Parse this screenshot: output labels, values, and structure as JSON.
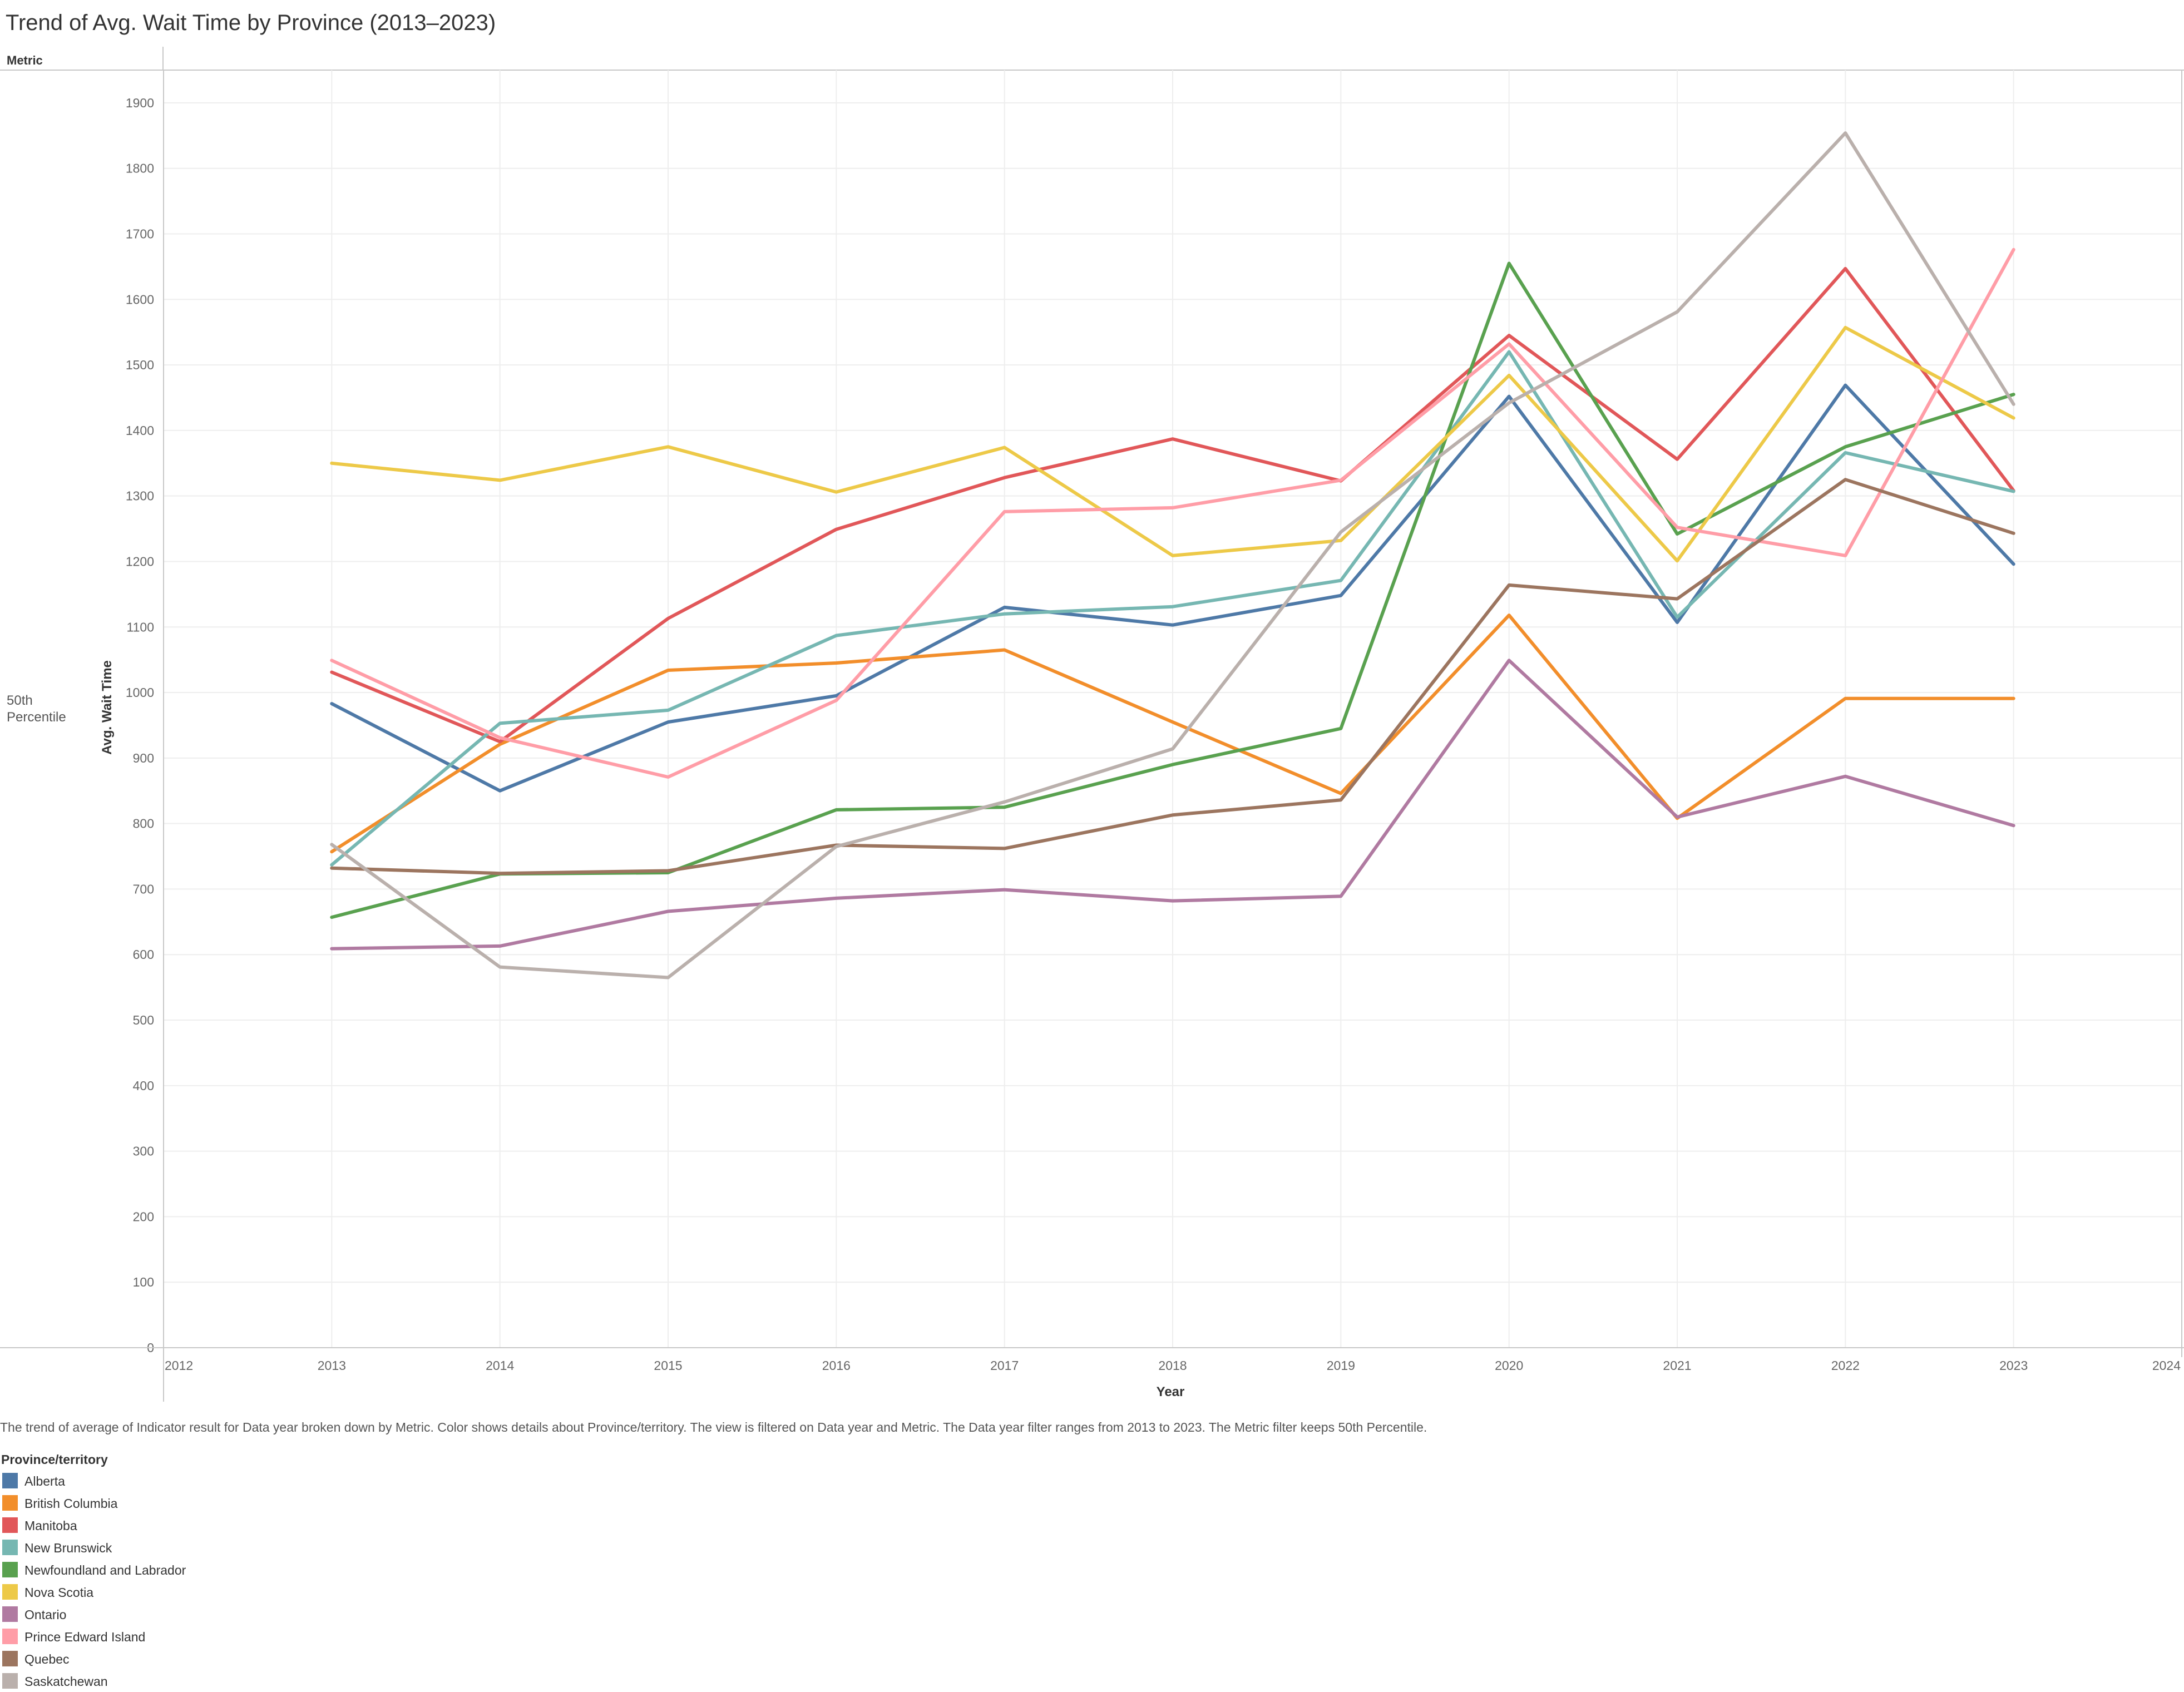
{
  "header": {
    "title": "Trend of Avg. Wait Time by Province (2013–2023)",
    "metric_header": "Metric",
    "row_label_line1": "50th",
    "row_label_line2": "Percentile"
  },
  "caption": "The trend of average of Indicator result for Data year broken down by Metric.  Color shows details about Province/territory. The view is filtered on Data year and Metric. The Data year filter ranges from 2013 to 2023. The Metric filter keeps 50th Percentile.",
  "chart_data": {
    "type": "line",
    "title": "Trend of Avg. Wait Time by Province (2013–2023)",
    "xlabel": "Year",
    "ylabel": "Avg. Wait Time",
    "xlim": [
      2012,
      2024
    ],
    "ylim": [
      0,
      1950
    ],
    "x_ticks": [
      2012,
      2013,
      2014,
      2015,
      2016,
      2017,
      2018,
      2019,
      2020,
      2021,
      2022,
      2023,
      2024
    ],
    "y_ticks": [
      0,
      100,
      200,
      300,
      400,
      500,
      600,
      700,
      800,
      900,
      1000,
      1100,
      1200,
      1300,
      1400,
      1500,
      1600,
      1700,
      1800,
      1900
    ],
    "grid": true,
    "legend_title": "Province/territory",
    "legend_position": "bottom-left",
    "x": [
      2013,
      2014,
      2015,
      2016,
      2017,
      2018,
      2019,
      2020,
      2021,
      2022,
      2023
    ],
    "series": [
      {
        "name": "Alberta",
        "color": "#4e79a7",
        "values": [
          983,
          850,
          955,
          995,
          1130,
          1103,
          1148,
          1452,
          1107,
          1469,
          1196
        ]
      },
      {
        "name": "British Columbia",
        "color": "#f28e2b",
        "values": [
          757,
          921,
          1034,
          1045,
          1065,
          955,
          846,
          1118,
          808,
          991,
          991
        ]
      },
      {
        "name": "Manitoba",
        "color": "#e15759",
        "values": [
          1031,
          925,
          1113,
          1249,
          1328,
          1387,
          1323,
          1545,
          1356,
          1647,
          1308
        ]
      },
      {
        "name": "New Brunswick",
        "color": "#76b7b2",
        "values": [
          737,
          953,
          973,
          1087,
          1120,
          1131,
          1171,
          1520,
          1115,
          1366,
          1307
        ]
      },
      {
        "name": "Newfoundland and Labrador",
        "color": "#59a14f",
        "values": [
          657,
          723,
          725,
          821,
          825,
          890,
          945,
          1655,
          1242,
          1375,
          1455
        ]
      },
      {
        "name": "Nova Scotia",
        "color": "#edc948",
        "values": [
          1350,
          1324,
          1375,
          1306,
          1374,
          1209,
          1232,
          1484,
          1201,
          1557,
          1419
        ]
      },
      {
        "name": "Ontario",
        "color": "#b07aa1",
        "values": [
          609,
          613,
          666,
          686,
          699,
          682,
          689,
          1049,
          810,
          872,
          797
        ]
      },
      {
        "name": "Prince Edward Island",
        "color": "#ff9da7",
        "values": [
          1049,
          931,
          871,
          988,
          1276,
          1282,
          1324,
          1532,
          1252,
          1209,
          1676
        ]
      },
      {
        "name": "Quebec",
        "color": "#9c755f",
        "values": [
          732,
          724,
          728,
          767,
          762,
          813,
          836,
          1164,
          1143,
          1325,
          1243
        ]
      },
      {
        "name": "Saskatchewan",
        "color": "#bab0ac",
        "values": [
          768,
          581,
          565,
          765,
          833,
          914,
          1245,
          1442,
          1581,
          1854,
          1440
        ]
      }
    ]
  }
}
